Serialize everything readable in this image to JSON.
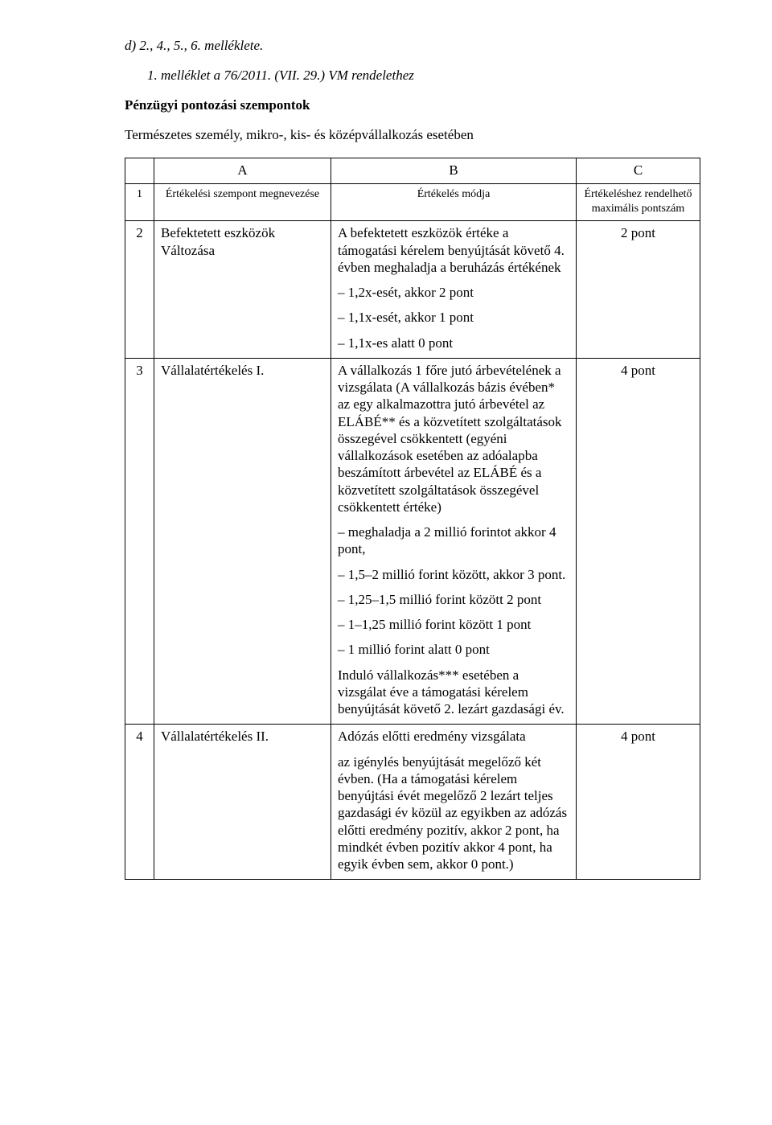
{
  "header": {
    "line_d": "d) 2., 4., 5., 6. melléklete.",
    "decree_line": "1. melléklet a 76/2011. (VII. 29.) VM rendelethez",
    "title": "Pénzügyi pontozási szempontok",
    "subtitle": "Természetes személy, mikro-, kis- és középvállalkozás esetében"
  },
  "table": {
    "abc": {
      "a": "A",
      "b": "B",
      "c": "C"
    },
    "header": {
      "num": "1",
      "col_a": "Értékelési szempont megnevezése",
      "col_b": "Értékelés módja",
      "col_c_line1": "Értékeléshez rendelhető",
      "col_c_line2": "maximális pontszám"
    },
    "row2": {
      "num": "2",
      "a_line1": "Befektetett eszközök",
      "a_line2": "Változása",
      "b_p1": "A befektetett eszközök értéke a támogatási kérelem benyújtását követő 4. évben meghaladja a beruházás értékének",
      "b_p2": "– 1,2x-esét, akkor 2 pont",
      "b_p3": "– 1,1x-esét, akkor 1 pont",
      "b_p4": "– 1,1x-es alatt 0 pont",
      "c": "2 pont"
    },
    "row3": {
      "num": "3",
      "a": "Vállalatértékelés I.",
      "b_p1": "A vállalkozás 1 főre jutó árbevételének a vizsgálata (A vállalkozás bázis évében* az egy alkalmazottra jutó árbevétel az ELÁBÉ** és a közvetített szolgáltatások összegével csökkentett (egyéni vállalkozások esetében az adóalapba beszámított árbevétel az ELÁBÉ és a közvetített szolgáltatások összegével csökkentett értéke)",
      "b_p2": "– meghaladja a 2 millió forintot akkor 4 pont,",
      "b_p3": "– 1,5–2 millió forint között, akkor 3 pont.",
      "b_p4": "– 1,25–1,5 millió forint között 2 pont",
      "b_p5": "– 1–1,25 millió forint között 1 pont",
      "b_p6": "– 1 millió forint alatt 0 pont",
      "b_p7": "Induló vállalkozás*** esetében a vizsgálat éve a támogatási kérelem benyújtását követő 2. lezárt gazdasági év.",
      "c": "4 pont"
    },
    "row4": {
      "num": "4",
      "a": "Vállalatértékelés II.",
      "b_p1": "Adózás előtti eredmény vizsgálata",
      "b_p2": "az igénylés benyújtását megelőző két évben. (Ha a támogatási kérelem benyújtási évét megelőző 2 lezárt teljes gazdasági év közül az egyikben az adózás előtti eredmény pozitív, akkor 2 pont, ha mindkét évben pozitív akkor 4 pont, ha egyik évben sem, akkor 0 pont.)",
      "c": "4 pont"
    }
  }
}
